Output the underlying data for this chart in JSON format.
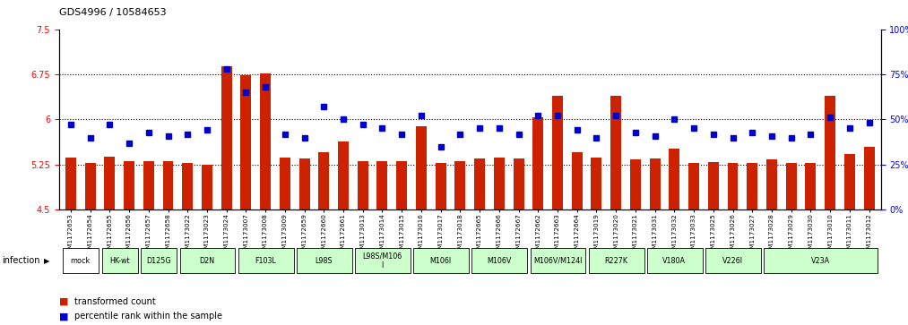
{
  "title": "GDS4996 / 10584653",
  "sample_ids": [
    "GSM1172653",
    "GSM1172654",
    "GSM1172655",
    "GSM1172656",
    "GSM1172657",
    "GSM1172658",
    "GSM1173022",
    "GSM1173023",
    "GSM1173024",
    "GSM1173007",
    "GSM1173008",
    "GSM1173009",
    "GSM1172659",
    "GSM1172660",
    "GSM1172661",
    "GSM1173013",
    "GSM1173014",
    "GSM1173015",
    "GSM1173016",
    "GSM1173017",
    "GSM1173018",
    "GSM1172665",
    "GSM1172666",
    "GSM1172667",
    "GSM1172662",
    "GSM1172663",
    "GSM1172664",
    "GSM1173019",
    "GSM1173020",
    "GSM1173021",
    "GSM1173031",
    "GSM1173032",
    "GSM1173033",
    "GSM1173025",
    "GSM1173026",
    "GSM1173027",
    "GSM1173028",
    "GSM1173029",
    "GSM1173030",
    "GSM1173010",
    "GSM1173011",
    "GSM1173012"
  ],
  "bar_values": [
    5.37,
    5.28,
    5.38,
    5.3,
    5.31,
    5.3,
    5.28,
    5.25,
    6.88,
    6.73,
    6.77,
    5.36,
    5.35,
    5.45,
    5.64,
    5.3,
    5.3,
    5.3,
    5.88,
    5.28,
    5.3,
    5.35,
    5.36,
    5.35,
    6.03,
    6.4,
    5.46,
    5.36,
    6.4,
    5.34,
    5.35,
    5.52,
    5.27,
    5.29,
    5.27,
    5.28,
    5.34,
    5.27,
    5.28,
    6.4,
    5.42,
    5.55
  ],
  "percentile_values": [
    47,
    40,
    47,
    37,
    43,
    41,
    42,
    44,
    78,
    65,
    68,
    42,
    40,
    57,
    50,
    47,
    45,
    42,
    52,
    35,
    42,
    45,
    45,
    42,
    52,
    52,
    44,
    40,
    52,
    43,
    41,
    50,
    45,
    42,
    40,
    43,
    41,
    40,
    42,
    51,
    45,
    48
  ],
  "groups": [
    {
      "label": "mock",
      "start": 0,
      "end": 2,
      "color": "#ffffff"
    },
    {
      "label": "HK-wt",
      "start": 2,
      "end": 4,
      "color": "#ccffcc"
    },
    {
      "label": "D125G",
      "start": 4,
      "end": 6,
      "color": "#ccffcc"
    },
    {
      "label": "D2N",
      "start": 6,
      "end": 9,
      "color": "#ccffcc"
    },
    {
      "label": "F103L",
      "start": 9,
      "end": 12,
      "color": "#ccffcc"
    },
    {
      "label": "L98S",
      "start": 12,
      "end": 15,
      "color": "#ccffcc"
    },
    {
      "label": "L98S/M106\nI",
      "start": 15,
      "end": 18,
      "color": "#ccffcc"
    },
    {
      "label": "M106I",
      "start": 18,
      "end": 21,
      "color": "#ccffcc"
    },
    {
      "label": "M106V",
      "start": 21,
      "end": 24,
      "color": "#ccffcc"
    },
    {
      "label": "M106V/M124I",
      "start": 24,
      "end": 27,
      "color": "#ccffcc"
    },
    {
      "label": "R227K",
      "start": 27,
      "end": 30,
      "color": "#ccffcc"
    },
    {
      "label": "V180A",
      "start": 30,
      "end": 33,
      "color": "#ccffcc"
    },
    {
      "label": "V226I",
      "start": 33,
      "end": 36,
      "color": "#ccffcc"
    },
    {
      "label": "V23A",
      "start": 36,
      "end": 42,
      "color": "#ccffcc"
    }
  ],
  "ylim_left": [
    4.5,
    7.5
  ],
  "ylim_right": [
    0,
    100
  ],
  "yticks_left": [
    4.5,
    5.25,
    6.0,
    6.75,
    7.5
  ],
  "yticks_right": [
    0,
    25,
    50,
    75,
    100
  ],
  "ytick_labels_left": [
    "4.5",
    "5.25",
    "6",
    "6.75",
    "7.5"
  ],
  "ytick_labels_right": [
    "0%",
    "25%",
    "50%",
    "75%",
    "100%"
  ],
  "hlines": [
    5.25,
    6.0,
    6.75
  ],
  "bar_color": "#cc2200",
  "percentile_color": "#0000cc",
  "bg_color": "#ffffff"
}
